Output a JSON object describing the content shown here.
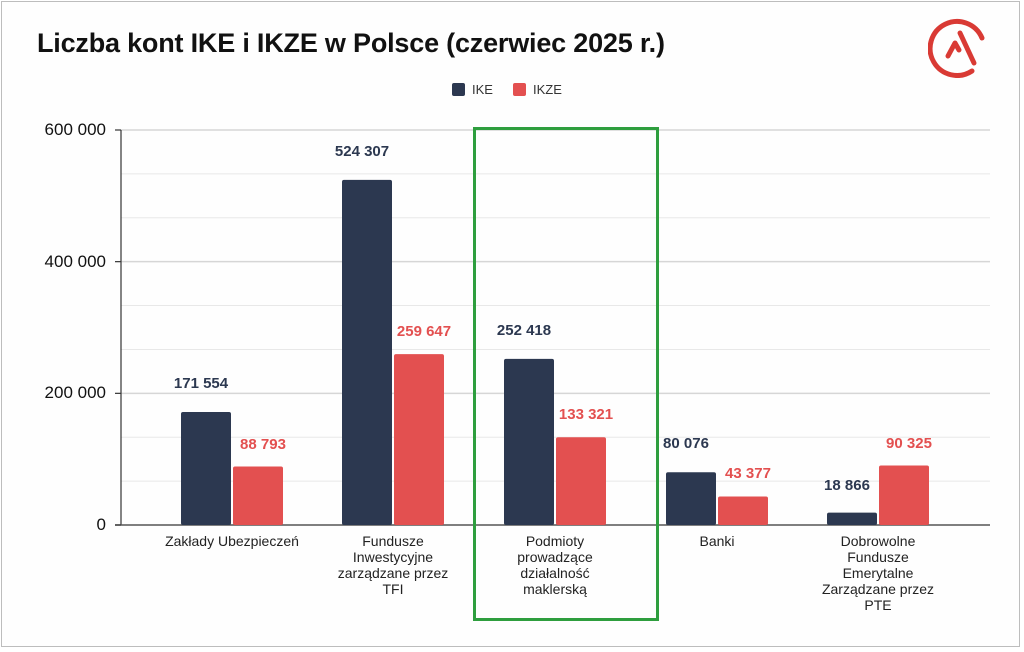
{
  "header": {
    "title": "Liczba kont IKE i IKZE w Polsce (czerwiec 2025 r.)",
    "logo_icon": "circle-chevron-logo-icon"
  },
  "legend": {
    "items": [
      {
        "label": "IKE",
        "color": "#2c3850"
      },
      {
        "label": "IKZE",
        "color": "#e35050"
      }
    ]
  },
  "colors": {
    "ike": "#2c3850",
    "ikze": "#e35050",
    "highlight": "#2e9e3e",
    "logo": "#d93a34",
    "grid": "#e3e3e3"
  },
  "y_axis": {
    "ticks": [
      "0",
      "200 000",
      "400 000",
      "600 000"
    ]
  },
  "chart_data": {
    "type": "bar",
    "title": "Liczba kont IKE i IKZE w Polsce (czerwiec 2025 r.)",
    "xlabel": "",
    "ylabel": "",
    "ylim": [
      0,
      600000
    ],
    "grid": true,
    "legend_position": "top",
    "categories": [
      "Zakłady Ubezpieczeń",
      "Fundusze Inwestycyjne zarządzane przez TFI",
      "Podmioty prowadzące działalność maklerską",
      "Banki",
      "Dobrowolne Fundusze Emerytalne Zarządzane przez PTE"
    ],
    "category_lines": [
      [
        "Zakłady Ubezpieczeń"
      ],
      [
        "Fundusze",
        "Inwestycyjne",
        "zarządzane przez",
        "TFI"
      ],
      [
        "Podmioty",
        "prowadzące",
        "działalność",
        "maklerską"
      ],
      [
        "Banki"
      ],
      [
        "Dobrowolne",
        "Fundusze",
        "Emerytalne",
        "Zarządzane przez",
        "PTE"
      ]
    ],
    "series": [
      {
        "name": "IKE",
        "values": [
          171554,
          524307,
          252418,
          80076,
          18866
        ],
        "labels": [
          "171 554",
          "524 307",
          "252 418",
          "80 076",
          "18 866"
        ]
      },
      {
        "name": "IKZE",
        "values": [
          88793,
          259647,
          133321,
          43377,
          90325
        ],
        "labels": [
          "88 793",
          "259 647",
          "133 321",
          "43 377",
          "90 325"
        ]
      }
    ],
    "annotations": [
      {
        "type": "highlight-box",
        "category": "Podmioty prowadzące działalność maklerską",
        "color": "#2e9e3e"
      }
    ]
  }
}
